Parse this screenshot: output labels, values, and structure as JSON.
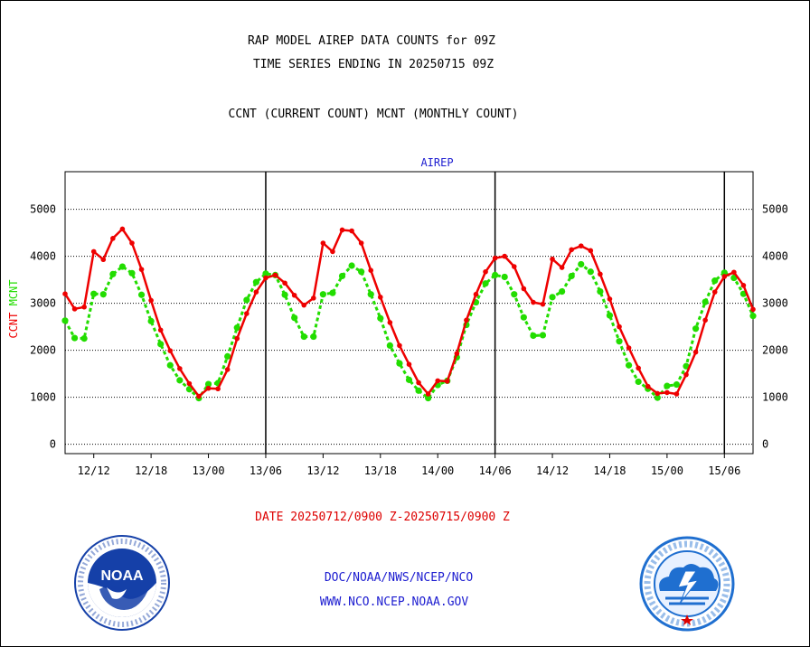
{
  "header": {
    "title_line1": "RAP MODEL AIREP DATA COUNTS for 09Z",
    "title_line2": "TIME SERIES ENDING IN 20250715 09Z",
    "subtitle": "CCNT (CURRENT COUNT) MCNT (MONTHLY COUNT)"
  },
  "footer": {
    "date_range": "DATE 20250712/0900 Z-20250715/0900 Z",
    "agency": "DOC/NOAA/NWS/NCEP/NCO",
    "website": "WWW.NCO.NCEP.NOAA.GOV"
  },
  "logos": {
    "left": {
      "icon": "noaa-logo",
      "text": "NOAA",
      "ring_text": "NATIONAL OCEANIC AND ATMOSPHERIC ADMINISTRATION · U.S. DEPARTMENT OF COMMERCE"
    },
    "right": {
      "icon": "nws-logo",
      "ring_text": "NATIONAL WEATHER SERVICE"
    }
  },
  "colors": {
    "ccnt": "#ee0000",
    "mcnt": "#22dd00",
    "date_text": "#dd0000",
    "link_text": "#1c1cd0",
    "noaa_blue": "#1540a8",
    "nws_blue": "#1f6fd0"
  },
  "chart_data": {
    "type": "line",
    "title": "AIREP",
    "ylabel_left": [
      "CCNT",
      "MCNT"
    ],
    "y_ticks": [
      0,
      1000,
      2000,
      3000,
      4000,
      5000
    ],
    "ylim": [
      -200,
      5800
    ],
    "x_ticks": [
      "12/12",
      "12/18",
      "13/00",
      "13/06",
      "13/12",
      "13/18",
      "14/00",
      "14/06",
      "14/12",
      "14/18",
      "15/00",
      "15/06"
    ],
    "x_tick_hours": [
      -69,
      -63,
      -57,
      -51,
      -45,
      -39,
      -33,
      -27,
      -21,
      -15,
      -9,
      -3
    ],
    "xlim_hours": [
      -72,
      0
    ],
    "day_boundaries_hours": [
      -51,
      -27,
      -3
    ],
    "grid": true,
    "x_unit": "hours relative to 20250715/0900 Z",
    "series": [
      {
        "name": "CCNT",
        "hours": [
          -72,
          -71,
          -70,
          -69,
          -68,
          -67,
          -66,
          -65,
          -64,
          -63,
          -62,
          -61,
          -60,
          -59,
          -58,
          -57,
          -56,
          -55,
          -54,
          -53,
          -52,
          -51,
          -50,
          -49,
          -48,
          -47,
          -46,
          -45,
          -44,
          -43,
          -42,
          -41,
          -40,
          -39,
          -38,
          -37,
          -36,
          -35,
          -34,
          -33,
          -32,
          -31,
          -30,
          -29,
          -28,
          -27,
          -26,
          -25,
          -24,
          -23,
          -22,
          -21,
          -20,
          -19,
          -18,
          -17,
          -16,
          -15,
          -14,
          -13,
          -12,
          -11,
          -10,
          -9,
          -8,
          -7,
          -6,
          -5,
          -4,
          -3,
          -2,
          -1,
          0
        ],
        "values": [
          3200,
          2880,
          2920,
          4100,
          3930,
          4380,
          4580,
          4280,
          3720,
          3060,
          2430,
          1990,
          1610,
          1290,
          1020,
          1190,
          1180,
          1590,
          2250,
          2780,
          3240,
          3540,
          3600,
          3430,
          3170,
          2960,
          3110,
          4280,
          4100,
          4560,
          4540,
          4280,
          3700,
          3130,
          2590,
          2100,
          1700,
          1310,
          1070,
          1350,
          1340,
          1930,
          2640,
          3190,
          3670,
          3960,
          4000,
          3780,
          3310,
          3020,
          2980,
          3940,
          3760,
          4140,
          4220,
          4120,
          3620,
          3090,
          2500,
          2050,
          1620,
          1230,
          1080,
          1100,
          1070,
          1480,
          1960,
          2640,
          3240,
          3570,
          3660,
          3380,
          2870
        ]
      },
      {
        "name": "MCNT",
        "hours": [
          -72,
          -71,
          -70,
          -69,
          -68,
          -67,
          -66,
          -65,
          -64,
          -63,
          -62,
          -61,
          -60,
          -59,
          -58,
          -57,
          -56,
          -55,
          -54,
          -53,
          -52,
          -51,
          -50,
          -49,
          -48,
          -47,
          -46,
          -45,
          -44,
          -43,
          -42,
          -41,
          -40,
          -39,
          -38,
          -37,
          -36,
          -35,
          -34,
          -33,
          -32,
          -31,
          -30,
          -29,
          -28,
          -27,
          -26,
          -25,
          -24,
          -23,
          -22,
          -21,
          -20,
          -19,
          -18,
          -17,
          -16,
          -15,
          -14,
          -13,
          -12,
          -11,
          -10,
          -9,
          -8,
          -7,
          -6,
          -5,
          -4,
          -3,
          -2,
          -1,
          0
        ],
        "values": [
          2630,
          2260,
          2250,
          3200,
          3190,
          3620,
          3780,
          3640,
          3180,
          2620,
          2130,
          1680,
          1360,
          1170,
          980,
          1280,
          1300,
          1870,
          2480,
          3070,
          3450,
          3630,
          3600,
          3180,
          2690,
          2290,
          2290,
          3190,
          3220,
          3580,
          3800,
          3670,
          3190,
          2680,
          2100,
          1720,
          1370,
          1140,
          980,
          1260,
          1350,
          1850,
          2540,
          3020,
          3420,
          3600,
          3560,
          3190,
          2700,
          2310,
          2320,
          3130,
          3250,
          3580,
          3830,
          3670,
          3250,
          2740,
          2190,
          1680,
          1330,
          1180,
          990,
          1240,
          1270,
          1660,
          2460,
          3030,
          3480,
          3650,
          3540,
          3200,
          2730
        ]
      }
    ]
  }
}
